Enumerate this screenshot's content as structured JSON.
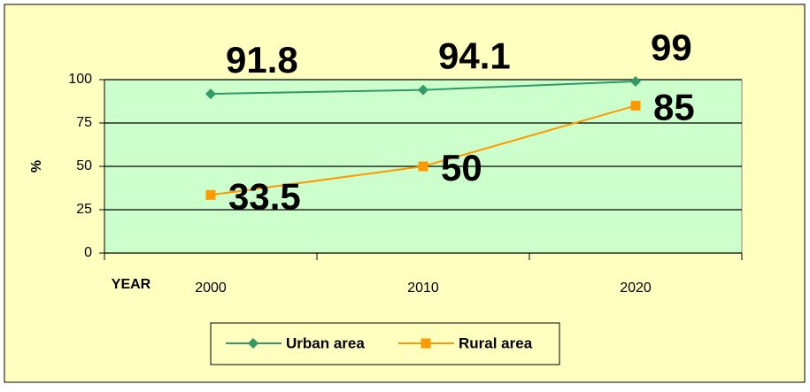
{
  "chart_data": {
    "type": "line",
    "categories": [
      "2000",
      "2010",
      "2020"
    ],
    "series": [
      {
        "name": "Urban area",
        "color": "#339966",
        "values": [
          91.8,
          94.1,
          99
        ]
      },
      {
        "name": "Rural area",
        "color": "#ff9900",
        "values": [
          33.5,
          50,
          85
        ]
      }
    ],
    "ylabel": "%",
    "xlabel": "YEAR",
    "ylim": [
      0,
      100
    ],
    "yticks": [
      0,
      25,
      50,
      75,
      100
    ],
    "grid": true,
    "legend": "bottom"
  }
}
